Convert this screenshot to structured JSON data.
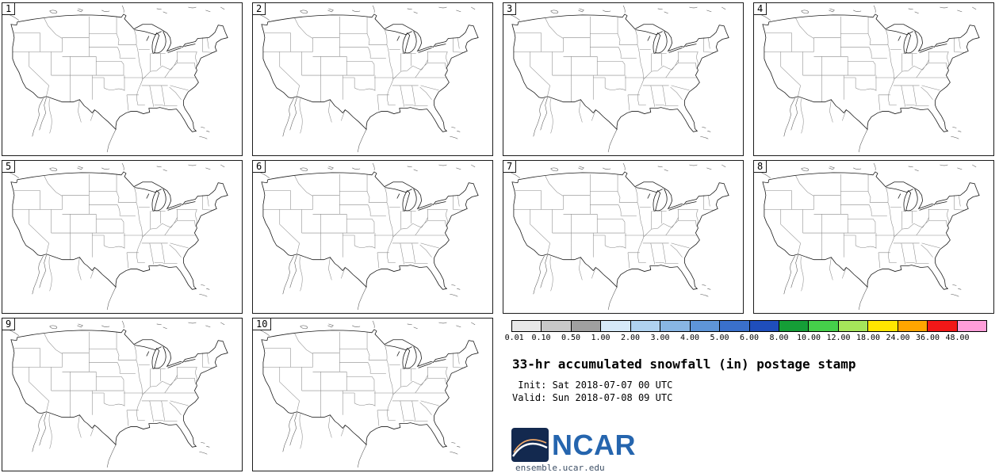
{
  "panels": {
    "labels": [
      "1",
      "2",
      "3",
      "4",
      "5",
      "6",
      "7",
      "8",
      "9",
      "10"
    ]
  },
  "colorbar": {
    "tick_labels": [
      "0.01",
      "0.10",
      "0.50",
      "1.00",
      "2.00",
      "3.00",
      "4.00",
      "5.00",
      "6.00",
      "8.00",
      "10.00",
      "12.00",
      "18.00",
      "24.00",
      "36.00",
      "48.00"
    ],
    "segment_colors": [
      "#e8e8e8",
      "#c8c8c8",
      "#a0a0a0",
      "#d6e9f8",
      "#b0d2ef",
      "#88b6e4",
      "#5e95d8",
      "#3a70cb",
      "#1f4ebc",
      "#159e37",
      "#45cf4a",
      "#a5e65a",
      "#ffe600",
      "#ffa500",
      "#f21818",
      "#ff9ed9"
    ]
  },
  "info": {
    "title": "33-hr accumulated snowfall (in) postage stamp",
    "init_line": " Init: Sat 2018-07-07 00 UTC",
    "valid_line": "Valid: Sun 2018-07-08 09 UTC"
  },
  "branding": {
    "logo_text": "NCAR",
    "site_url": "ensemble.ucar.edu",
    "logo_bg_color": "#13294f",
    "wordmark_color": "#2565ae",
    "site_text_color": "#3d4f66"
  }
}
